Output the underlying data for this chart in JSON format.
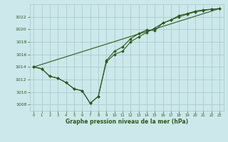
{
  "background_color": "#cce8ea",
  "grid_color": "#aacccc",
  "line_color": "#2d5a1b",
  "marker_color": "#2d5a1b",
  "xlabel": "Graphe pression niveau de la mer (hPa)",
  "xlabel_color": "#2d5a1b",
  "ylim": [
    1007.0,
    1024.0
  ],
  "xlim": [
    -0.5,
    23.5
  ],
  "yticks": [
    1008,
    1010,
    1012,
    1014,
    1016,
    1018,
    1020,
    1022
  ],
  "xticks": [
    0,
    1,
    2,
    3,
    4,
    5,
    6,
    7,
    8,
    9,
    10,
    11,
    12,
    13,
    14,
    15,
    16,
    17,
    18,
    19,
    20,
    21,
    22,
    23
  ],
  "series1_x": [
    0,
    1,
    2,
    3,
    4,
    5,
    6,
    7,
    8,
    9,
    10,
    11,
    12,
    13,
    14,
    15,
    16,
    17,
    18,
    19,
    20,
    21,
    22,
    23
  ],
  "series1_y": [
    1014.0,
    1013.7,
    1012.5,
    1012.2,
    1011.5,
    1010.5,
    1010.2,
    1008.2,
    1009.3,
    1015.0,
    1016.5,
    1017.2,
    1018.5,
    1019.3,
    1019.9,
    1019.8,
    1021.0,
    1021.5,
    1022.2,
    1022.5,
    1022.9,
    1023.1,
    1023.2,
    1023.3
  ],
  "series2_x": [
    0,
    1,
    2,
    3,
    4,
    5,
    6,
    7,
    8,
    9,
    10,
    11,
    12,
    13,
    14,
    15,
    16,
    17,
    18,
    19,
    20,
    21,
    22,
    23
  ],
  "series2_y": [
    1014.0,
    1013.7,
    1012.5,
    1012.2,
    1011.5,
    1010.5,
    1010.2,
    1008.2,
    1009.3,
    1014.8,
    1016.0,
    1016.5,
    1018.0,
    1018.8,
    1019.5,
    1020.2,
    1021.0,
    1021.5,
    1022.0,
    1022.4,
    1022.8,
    1023.0,
    1023.2,
    1023.3
  ],
  "series3_x": [
    0,
    23
  ],
  "series3_y": [
    1014.0,
    1023.3
  ]
}
